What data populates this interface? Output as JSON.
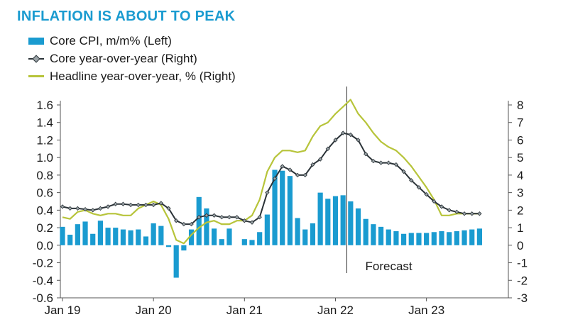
{
  "title": "INFLATION IS ABOUT TO PEAK",
  "legend": [
    {
      "label": "Core CPI, m/m% (Left)",
      "type": "bar"
    },
    {
      "label": "Core year-over-year (Right)",
      "type": "line-marker"
    },
    {
      "label": "Headline year-over-year, % (Right)",
      "type": "line"
    }
  ],
  "colors": {
    "bars": "#1a9bd0",
    "core": "#2b3338",
    "core_marker": "#9aa3a7",
    "headline": "#b7c43a",
    "title": "#1a9bd0"
  },
  "chart_data": {
    "type": "bar",
    "title": "INFLATION IS ABOUT TO PEAK",
    "x_tick_labels": [
      "Jan 19",
      "Jan 20",
      "Jan 21",
      "Jan 22",
      "Jan 23"
    ],
    "x_tick_months": [
      0,
      12,
      24,
      36,
      48
    ],
    "y_left_lim": [
      -0.6,
      1.6
    ],
    "y_left_ticks": [
      "-0.6",
      "-0.4",
      "-0.2",
      "0.0",
      "0.2",
      "0.4",
      "0.6",
      "0.8",
      "1.0",
      "1.2",
      "1.4",
      "1.6"
    ],
    "y_right_lim": [
      -3,
      8
    ],
    "y_right_ticks": [
      "-3",
      "-2",
      "-1",
      "0",
      "1",
      "2",
      "3",
      "4",
      "5",
      "6",
      "7",
      "8"
    ],
    "months_index_start": "Jan 2019",
    "forecast_start_month": 38,
    "annotation": "Forecast",
    "series": [
      {
        "name": "Core CPI, m/m% (Left)",
        "axis": "left",
        "kind": "bar",
        "values": [
          0.21,
          0.12,
          0.24,
          0.27,
          0.13,
          0.28,
          0.2,
          0.2,
          0.18,
          0.17,
          0.18,
          0.1,
          0.25,
          0.22,
          -0.02,
          -0.37,
          -0.06,
          0.18,
          0.55,
          0.42,
          0.19,
          0.07,
          0.19,
          0.0,
          0.07,
          0.06,
          0.15,
          0.35,
          0.86,
          0.85,
          0.79,
          0.31,
          0.18,
          0.25,
          0.6,
          0.53,
          0.56,
          0.57,
          0.5,
          0.42,
          0.3,
          0.24,
          0.21,
          0.18,
          0.16,
          0.13,
          0.14,
          0.14,
          0.14,
          0.15,
          0.16,
          0.15,
          0.16,
          0.17,
          0.18,
          0.19
        ]
      },
      {
        "name": "Core year-over-year (Right)",
        "axis": "right",
        "kind": "line-marker",
        "values": [
          2.2,
          2.1,
          2.1,
          2.05,
          2.0,
          2.1,
          2.2,
          2.35,
          2.35,
          2.3,
          2.3,
          2.3,
          2.3,
          2.4,
          2.1,
          1.4,
          1.2,
          1.2,
          1.6,
          1.7,
          1.7,
          1.6,
          1.6,
          1.6,
          1.4,
          1.3,
          1.6,
          3.0,
          3.8,
          4.5,
          4.3,
          4.0,
          4.0,
          4.6,
          4.9,
          5.5,
          6.0,
          6.4,
          6.3,
          6.0,
          5.2,
          4.8,
          4.7,
          4.7,
          4.6,
          4.2,
          3.7,
          3.3,
          2.9,
          2.5,
          2.2,
          2.0,
          1.9,
          1.8,
          1.8,
          1.8
        ]
      },
      {
        "name": "Headline year-over-year, % (Right)",
        "axis": "right",
        "kind": "line",
        "values": [
          1.6,
          1.5,
          1.9,
          2.0,
          1.8,
          1.7,
          1.8,
          1.8,
          1.7,
          1.7,
          2.1,
          2.3,
          2.5,
          2.3,
          1.5,
          0.3,
          0.1,
          0.6,
          1.0,
          1.3,
          1.4,
          1.2,
          1.2,
          1.4,
          1.4,
          1.7,
          2.6,
          4.2,
          5.0,
          5.4,
          5.4,
          5.3,
          5.4,
          6.2,
          6.8,
          7.0,
          7.5,
          7.9,
          8.3,
          7.5,
          7.0,
          6.4,
          5.9,
          5.6,
          5.4,
          5.0,
          4.5,
          3.9,
          3.3,
          2.6,
          1.7,
          1.7,
          1.8,
          1.8,
          1.8,
          1.8
        ]
      }
    ]
  }
}
